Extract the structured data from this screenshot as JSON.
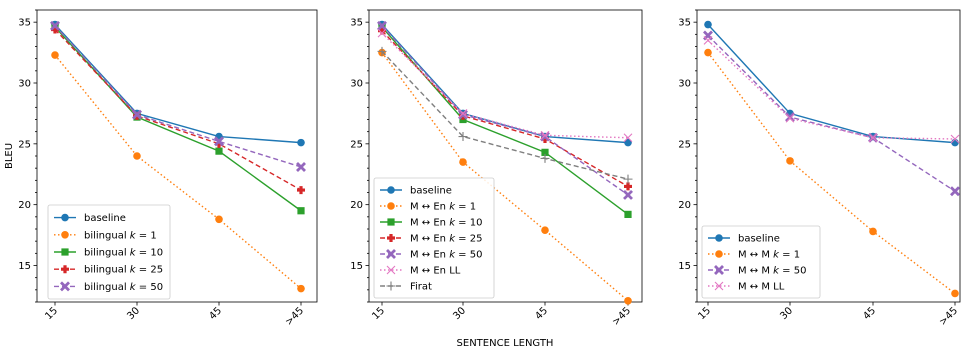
{
  "figure": {
    "shared_ylabel": "BLEU",
    "shared_xlabel": "SENTENCE LENGTH"
  },
  "chart_data": [
    {
      "type": "line",
      "categories": [
        "15",
        "30",
        "45",
        ">45"
      ],
      "ylim": [
        12,
        36
      ],
      "yticks": [
        15,
        20,
        25,
        30,
        35
      ],
      "grid": false,
      "legend_position": "lower-left",
      "series": [
        {
          "name": "baseline",
          "color": "#1f77b4",
          "dash": "solid",
          "marker": "circle",
          "values": [
            34.8,
            27.5,
            25.6,
            25.1
          ]
        },
        {
          "name": "bilingual k = 1",
          "color": "#ff7f0e",
          "dash": "dotted",
          "marker": "circle",
          "values": [
            32.3,
            24.0,
            18.8,
            13.1
          ]
        },
        {
          "name": "bilingual k = 10",
          "color": "#2ca02c",
          "dash": "solid",
          "marker": "square",
          "values": [
            34.6,
            27.2,
            24.4,
            19.5
          ]
        },
        {
          "name": "bilingual k = 25",
          "color": "#d62728",
          "dash": "dashed",
          "marker": "plus",
          "values": [
            34.4,
            27.3,
            25.0,
            21.2
          ]
        },
        {
          "name": "bilingual k = 50",
          "color": "#9467bd",
          "dash": "dashed",
          "marker": "x",
          "values": [
            34.7,
            27.4,
            25.2,
            23.1
          ]
        }
      ]
    },
    {
      "type": "line",
      "categories": [
        "15",
        "30",
        "45",
        ">45"
      ],
      "ylim": [
        12,
        36
      ],
      "yticks": [
        15,
        20,
        25,
        30,
        35
      ],
      "grid": false,
      "legend_position": "lower-left",
      "series": [
        {
          "name": "baseline",
          "color": "#1f77b4",
          "dash": "solid",
          "marker": "circle",
          "values": [
            34.8,
            27.5,
            25.6,
            25.1
          ]
        },
        {
          "name": "M ↔ En   k = 1",
          "color": "#ff7f0e",
          "dash": "dotted",
          "marker": "circle",
          "values": [
            32.5,
            23.5,
            17.9,
            12.1
          ]
        },
        {
          "name": "M ↔ En  k = 10",
          "color": "#2ca02c",
          "dash": "solid",
          "marker": "square",
          "values": [
            34.6,
            27.0,
            24.3,
            19.2
          ]
        },
        {
          "name": "M ↔ En  k = 25",
          "color": "#d62728",
          "dash": "dashed",
          "marker": "plus",
          "values": [
            34.3,
            27.3,
            25.4,
            21.5
          ]
        },
        {
          "name": "M ↔ En  k = 50",
          "color": "#9467bd",
          "dash": "dashed",
          "marker": "x",
          "values": [
            34.7,
            27.4,
            25.6,
            20.8
          ]
        },
        {
          "name": "M ↔ En  LL",
          "color": "#e377c2",
          "dash": "dotted",
          "marker": "cross",
          "values": [
            34.1,
            27.5,
            25.7,
            25.5
          ]
        },
        {
          "name": "Firat",
          "color": "#7f7f7f",
          "dash": "dashed",
          "marker": "plus-thin",
          "values": [
            32.6,
            25.6,
            23.8,
            22.1
          ]
        }
      ]
    },
    {
      "type": "line",
      "categories": [
        "15",
        "30",
        "45",
        ">45"
      ],
      "ylim": [
        12,
        36
      ],
      "yticks": [
        15,
        20,
        25,
        30,
        35
      ],
      "grid": false,
      "legend_position": "lower-left",
      "series": [
        {
          "name": "baseline",
          "color": "#1f77b4",
          "dash": "solid",
          "marker": "circle",
          "values": [
            34.8,
            27.5,
            25.6,
            25.1
          ]
        },
        {
          "name": "M ↔ M  k = 1",
          "color": "#ff7f0e",
          "dash": "dotted",
          "marker": "circle",
          "values": [
            32.5,
            23.6,
            17.8,
            12.7
          ]
        },
        {
          "name": "M ↔ M  k = 50",
          "color": "#9467bd",
          "dash": "dashed",
          "marker": "x",
          "values": [
            33.9,
            27.2,
            25.5,
            21.1
          ]
        },
        {
          "name": "M ↔ M  LL",
          "color": "#e377c2",
          "dash": "dotted",
          "marker": "cross",
          "values": [
            33.5,
            27.1,
            25.5,
            25.4
          ]
        }
      ]
    }
  ]
}
